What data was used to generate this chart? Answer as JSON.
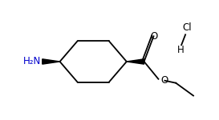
{
  "bg_color": "#ffffff",
  "line_color": "#000000",
  "blue_color": "#0000cc",
  "figsize": [
    2.73,
    1.5
  ],
  "dpi": 100,
  "nh2_text": "H₂N",
  "hcl_h": "H",
  "hcl_cl": "Cl",
  "o_ester": "O",
  "o_carbonyl": "O"
}
